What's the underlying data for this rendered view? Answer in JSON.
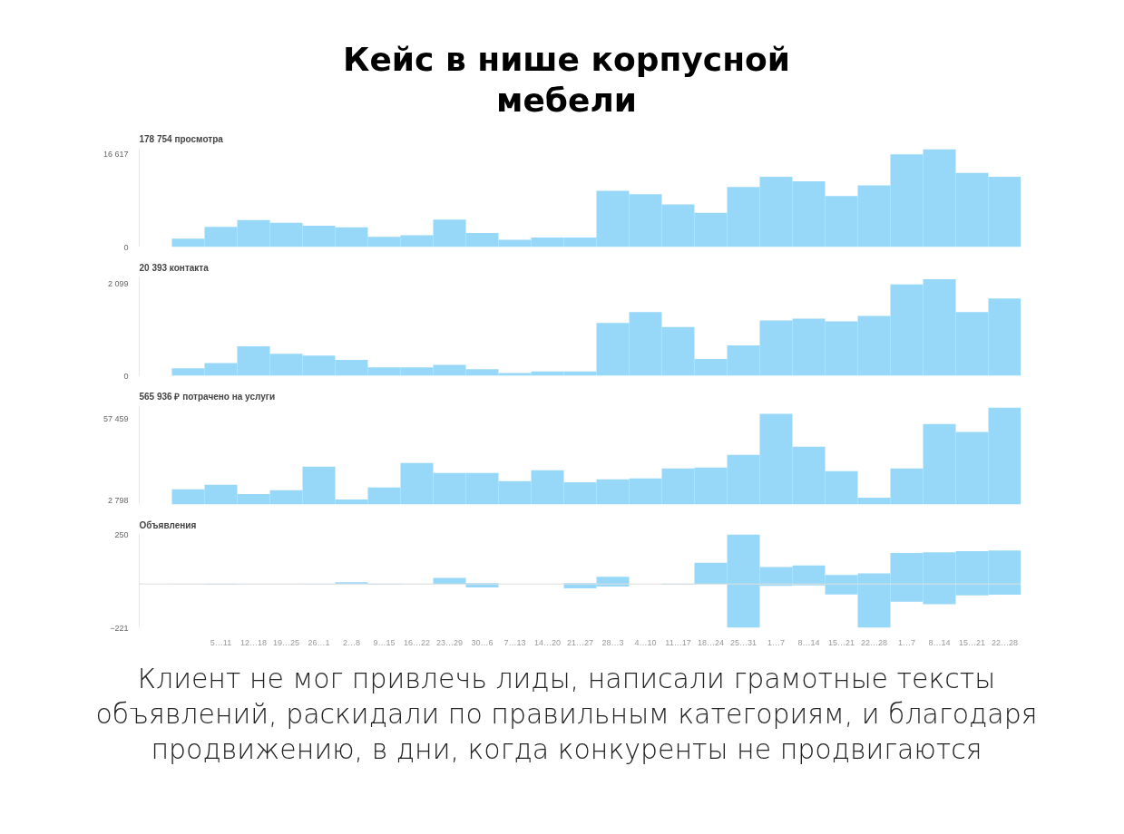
{
  "chart_data": [
    {
      "type": "bar",
      "title": "Кейс в нише корпусной мебели",
      "subtitle": "178 754 просмотра",
      "categories": [
        null,
        null,
        null,
        null,
        null,
        null,
        null,
        null,
        null,
        null,
        null,
        null,
        null,
        null,
        null,
        null,
        null,
        null,
        null,
        null,
        null,
        null,
        null,
        null,
        null,
        null
      ],
      "values": [
        1500,
        3600,
        4800,
        4300,
        3800,
        3500,
        1800,
        2100,
        4900,
        2500,
        1300,
        1700,
        1700,
        10000,
        9400,
        7600,
        6100,
        10700,
        12500,
        11700,
        9100,
        11000,
        16500,
        17400,
        13200,
        12500
      ],
      "color": "#97d8f8",
      "ylim": [
        0,
        17600
      ],
      "yticks": [
        0,
        {
          "value": 16617,
          "label": "16 617"
        }
      ],
      "grid": false,
      "tick_labels": "y"
    },
    {
      "type": "bar",
      "subtitle": "20 393 контакта",
      "categories": [
        null,
        null,
        null,
        null,
        null,
        null,
        null,
        null,
        null,
        null,
        null,
        null,
        null,
        null,
        null,
        null,
        null,
        null,
        null,
        null,
        null,
        null,
        null,
        null,
        null,
        null
      ],
      "values": [
        170,
        290,
        670,
        500,
        460,
        360,
        190,
        190,
        250,
        150,
        60,
        100,
        100,
        1200,
        1450,
        1110,
        380,
        690,
        1260,
        1300,
        1240,
        1360,
        2080,
        2200,
        1450,
        1760
      ],
      "color": "#97d8f8",
      "ylim": [
        0,
        2250
      ],
      "yticks": [
        0,
        {
          "value": 2099,
          "label": "2 099"
        }
      ],
      "grid": false,
      "tick_labels": "y"
    },
    {
      "type": "bar",
      "subtitle": "565 936 ₽ потрачено на услуги",
      "categories": [
        null,
        null,
        null,
        null,
        null,
        null,
        null,
        null,
        null,
        null,
        null,
        null,
        null,
        null,
        null,
        null,
        null,
        null,
        null,
        null,
        null,
        null,
        null,
        null,
        null,
        null
      ],
      "values": [
        10100,
        13100,
        7000,
        9500,
        25300,
        3400,
        11300,
        27700,
        21000,
        21000,
        15600,
        22800,
        14900,
        16800,
        17400,
        24100,
        24700,
        33200,
        60500,
        38600,
        22200,
        4600,
        24100,
        53800,
        48400,
        64700
      ],
      "color": "#97d8f8",
      "ylim": [
        0,
        66000
      ],
      "yticks": [
        {
          "value": 2798,
          "label": "2 798"
        },
        {
          "value": 57459,
          "label": "57 459"
        }
      ],
      "grid": false,
      "tick_labels": "y"
    },
    {
      "type": "bar",
      "subtitle": "Объявления",
      "categories": [
        null,
        "5…11",
        "12…18",
        "19…25",
        "26…1",
        "2…8",
        "9…15",
        "16…22",
        "23…29",
        "30…6",
        "7…13",
        "14…20",
        "21…27",
        "28…3",
        "4…10",
        "11…17",
        "18…24",
        "25…31",
        "1…7",
        "8…14",
        "15…21",
        "22…28",
        "1…7",
        "8…14",
        "15…21",
        "22…28"
      ],
      "series": [
        {
          "color": "#97d8f8",
          "values": [
            0,
            0,
            0,
            0,
            0,
            9,
            0,
            0,
            31,
            4,
            0,
            0,
            4,
            36,
            0,
            0,
            107,
            250,
            85,
            93,
            45,
            53,
            156,
            160,
            165,
            169
          ]
        },
        {
          "color": "#97d8f8",
          "values": [
            -2,
            -4,
            -2,
            -2,
            -3,
            0,
            -4,
            -2,
            0,
            -18,
            0,
            0,
            -22,
            -13,
            0,
            -4,
            0,
            -221,
            -9,
            -7,
            -53,
            -221,
            -89,
            -102,
            -58,
            -54
          ]
        }
      ],
      "ylim": [
        -221,
        250
      ],
      "yticks": [
        -221,
        250
      ],
      "grid": false,
      "ref_lines": [
        {
          "axis": "y",
          "value": 0,
          "color": "#dddddd"
        }
      ],
      "annotations": [
        "Клиент не мог привлечь лиды, написали грамотные тексты объявлений, раскидали по правильным категориям, и благодаря продвижению, в дни, когда конкуренты не продвигаются"
      ]
    }
  ]
}
